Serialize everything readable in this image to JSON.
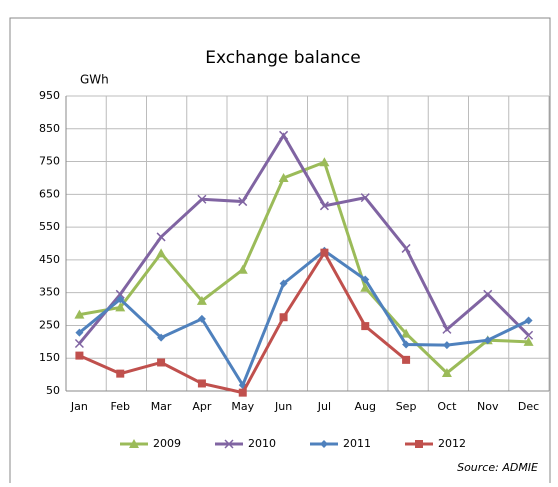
{
  "chart_data": {
    "type": "line",
    "title": "Exchange balance",
    "y_axis_label": "GWh",
    "source": "Source: ADMIE",
    "categories": [
      "Jan",
      "Feb",
      "Mar",
      "Apr",
      "May",
      "Jun",
      "Jul",
      "Aug",
      "Sep",
      "Oct",
      "Nov",
      "Dec"
    ],
    "series": [
      {
        "name": "2009",
        "color": "#9bbb59",
        "marker": "triangle",
        "values": [
          283,
          305,
          470,
          325,
          420,
          700,
          748,
          365,
          225,
          105,
          205,
          200
        ]
      },
      {
        "name": "2010",
        "color": "#8064a2",
        "marker": "x",
        "values": [
          195,
          345,
          520,
          635,
          628,
          830,
          615,
          640,
          485,
          238,
          345,
          220
        ]
      },
      {
        "name": "2011",
        "color": "#4f81bd",
        "marker": "diamond",
        "values": [
          228,
          330,
          213,
          270,
          68,
          378,
          478,
          390,
          192,
          190,
          205,
          265
        ]
      },
      {
        "name": "2012",
        "color": "#c0504d",
        "marker": "square",
        "values": [
          158,
          103,
          137,
          73,
          45,
          275,
          472,
          248,
          145,
          null,
          null,
          null
        ]
      }
    ],
    "ylim": [
      50,
      950
    ],
    "yticks": [
      50,
      150,
      250,
      350,
      450,
      550,
      650,
      750,
      850,
      950
    ],
    "grid": true,
    "legend": "bottom"
  }
}
